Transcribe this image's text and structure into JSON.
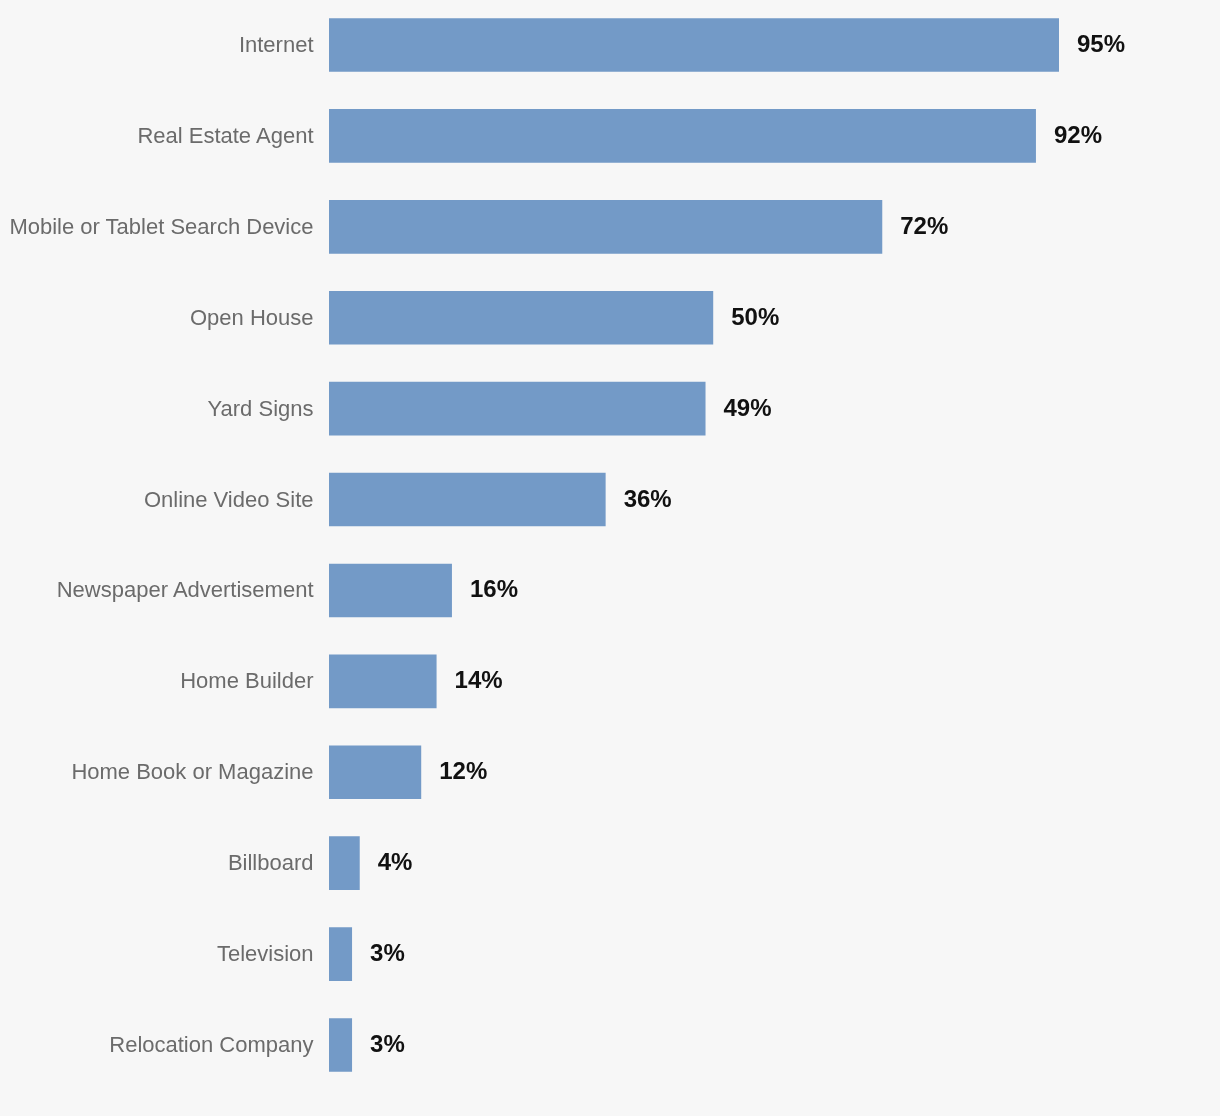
{
  "chart_data": {
    "type": "bar",
    "orientation": "horizontal",
    "color": "#739ac7",
    "categories": [
      "Internet",
      "Real Estate Agent",
      "Mobile or Tablet Search Device",
      "Open House",
      "Yard Signs",
      "Online Video Site",
      "Newspaper Advertisement",
      "Home Builder",
      "Home Book or Magazine",
      "Billboard",
      "Television",
      "Relocation Company"
    ],
    "values": [
      95,
      92,
      72,
      50,
      49,
      36,
      16,
      14,
      12,
      4,
      3,
      3
    ],
    "value_labels": [
      "95%",
      "92%",
      "72%",
      "50%",
      "49%",
      "36%",
      "16%",
      "14%",
      "12%",
      "4%",
      "3%",
      "3%"
    ]
  }
}
